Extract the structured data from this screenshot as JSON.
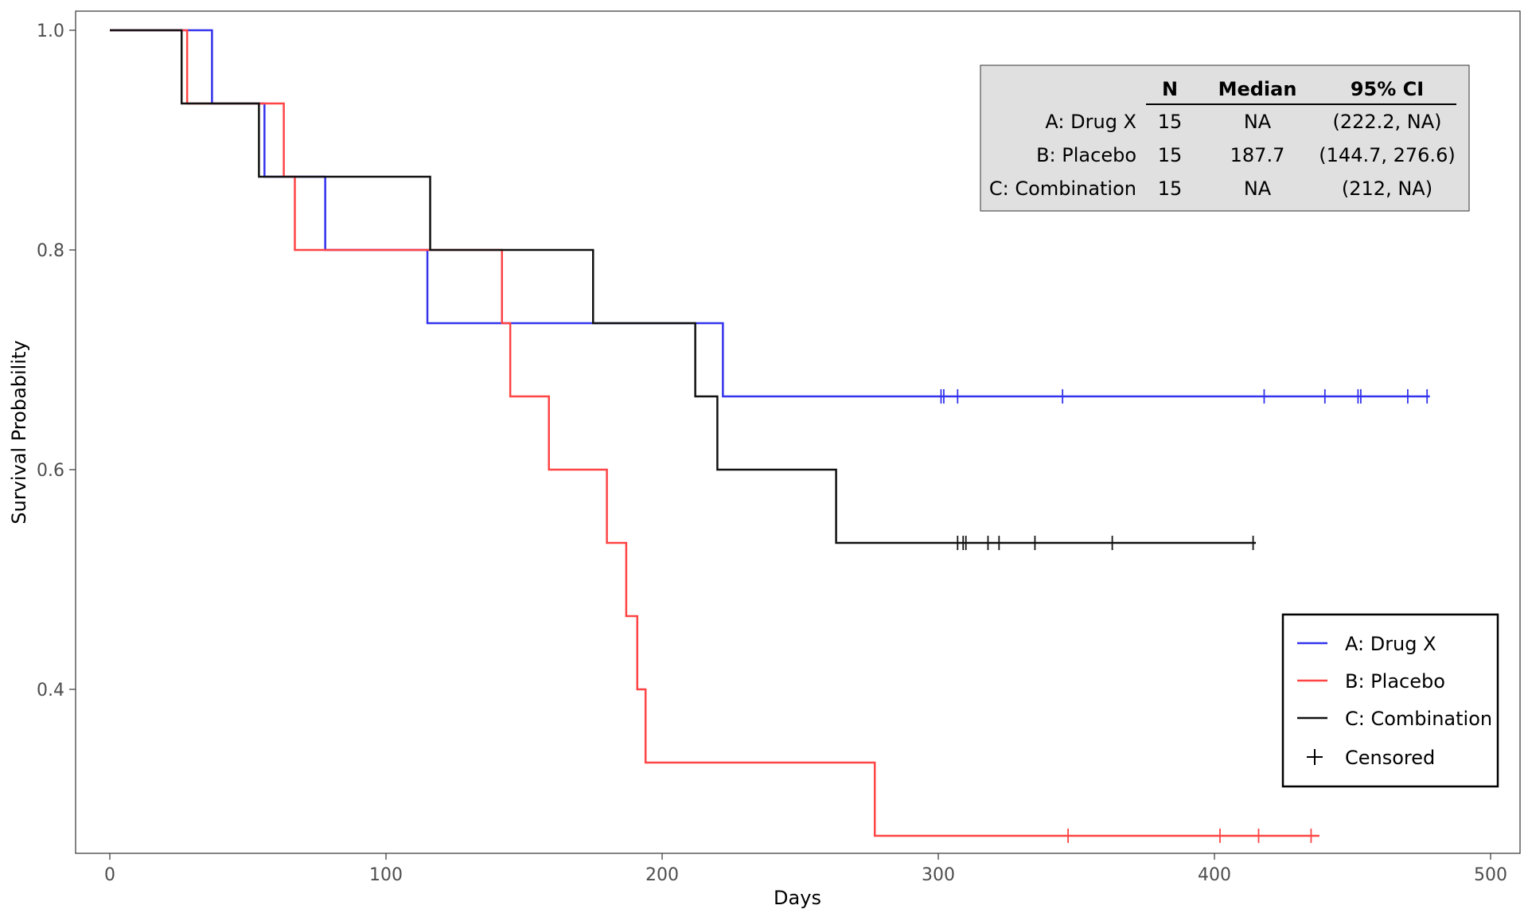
{
  "chart_data": {
    "type": "line",
    "subtype": "kaplan-meier-step",
    "xlabel": "Days",
    "ylabel": "Survival Probability",
    "xlim": [
      0,
      500
    ],
    "ylim": [
      0.26,
      1.02
    ],
    "x_ticks": [
      0,
      100,
      200,
      300,
      400,
      500
    ],
    "x_tick_labels": [
      "0",
      "100",
      "200",
      "300",
      "400",
      "500"
    ],
    "y_ticks": [
      0.4,
      0.6,
      0.8,
      1.0
    ],
    "y_tick_labels": [
      "0.4",
      "0.6",
      "0.8",
      "1.0"
    ],
    "grid": false,
    "legend_position": "bottom-right",
    "series": [
      {
        "name": "A: Drug X",
        "color": "#3333ee",
        "steps": [
          [
            0,
            1.0
          ],
          [
            37,
            0.9333
          ],
          [
            56,
            0.8667
          ],
          [
            78,
            0.8
          ],
          [
            115,
            0.7333
          ],
          [
            222,
            0.6667
          ]
        ],
        "end_x": 478,
        "censored": [
          301,
          302,
          307,
          345,
          418,
          440,
          452,
          453,
          470,
          477
        ]
      },
      {
        "name": "B: Placebo",
        "color": "#ff4444",
        "steps": [
          [
            0,
            1.0
          ],
          [
            28,
            0.9333
          ],
          [
            63,
            0.8667
          ],
          [
            67,
            0.8
          ],
          [
            142,
            0.7333
          ],
          [
            145,
            0.6667
          ],
          [
            159,
            0.6
          ],
          [
            180,
            0.5333
          ],
          [
            187,
            0.4667
          ],
          [
            191,
            0.4
          ],
          [
            194,
            0.3333
          ],
          [
            277,
            0.2667
          ]
        ],
        "end_x": 438,
        "censored": [
          347,
          402,
          416,
          435
        ]
      },
      {
        "name": "C: Combination",
        "color": "#111111",
        "steps": [
          [
            0,
            1.0
          ],
          [
            26,
            0.9333
          ],
          [
            54,
            0.8667
          ],
          [
            116,
            0.8
          ],
          [
            175,
            0.7333
          ],
          [
            212,
            0.6667
          ],
          [
            220,
            0.6
          ],
          [
            263,
            0.5333
          ]
        ],
        "end_x": 415,
        "censored": [
          307,
          309,
          310,
          318,
          322,
          335,
          363,
          414
        ]
      }
    ],
    "summary_table": {
      "headers": [
        "",
        "N",
        "Median",
        "95% CI"
      ],
      "rows": [
        {
          "label": "A: Drug X",
          "n": "15",
          "median": "NA",
          "ci": "(222.2, NA)"
        },
        {
          "label": "B: Placebo",
          "n": "15",
          "median": "187.7",
          "ci": "(144.7, 276.6)"
        },
        {
          "label": "C: Combination",
          "n": "15",
          "median": "NA",
          "ci": "(212, NA)"
        }
      ]
    },
    "legend": {
      "entries": [
        {
          "label": "A: Drug X",
          "color": "#3333ee",
          "symbol": "line"
        },
        {
          "label": "B: Placebo",
          "color": "#ff4444",
          "symbol": "line"
        },
        {
          "label": "C: Combination",
          "color": "#111111",
          "symbol": "line"
        },
        {
          "label": "Censored",
          "color": "#000000",
          "symbol": "plus"
        }
      ]
    }
  }
}
